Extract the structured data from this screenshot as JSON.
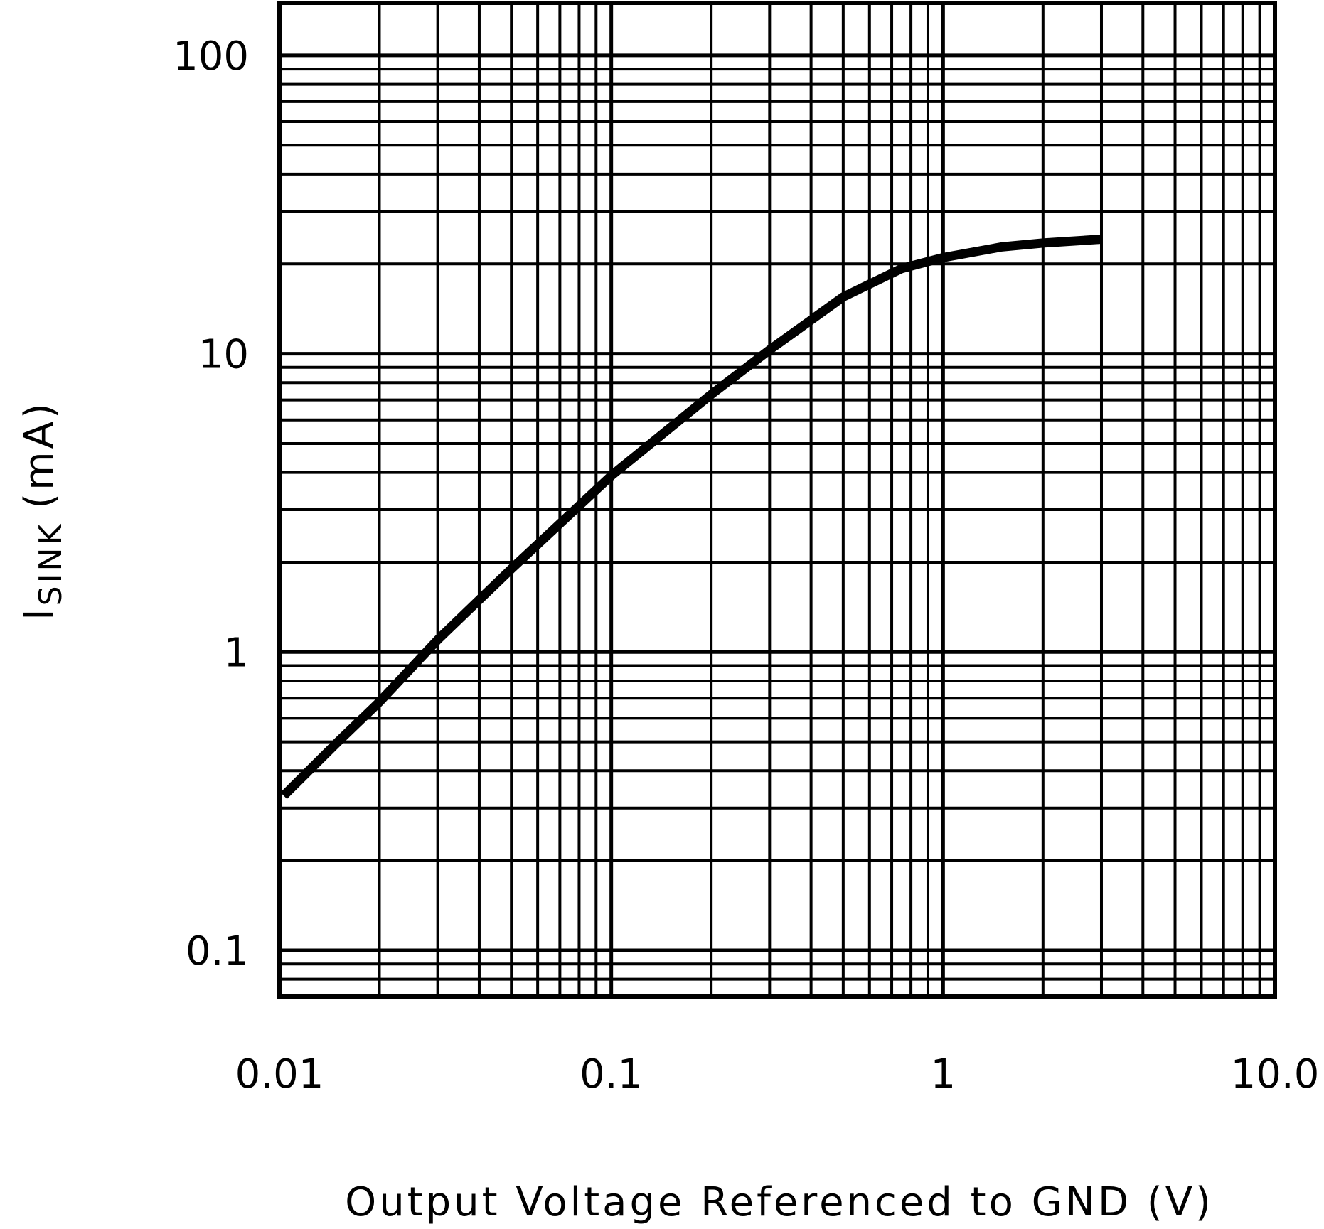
{
  "chart_data": {
    "type": "line",
    "xlabel": "Output Voltage Referenced to GND (V)",
    "ylabel_main": "I",
    "ylabel_sub": "SINK",
    "ylabel_unit": "(mA)",
    "x_scale": "log",
    "y_scale": "log",
    "xlim": [
      0.01,
      10.0
    ],
    "ylim": [
      0.07,
      150
    ],
    "x_ticks": [
      {
        "value": 0.01,
        "label": "0.01"
      },
      {
        "value": 0.1,
        "label": "0.1"
      },
      {
        "value": 1,
        "label": "1"
      },
      {
        "value": 10,
        "label": "10.0"
      }
    ],
    "y_ticks": [
      {
        "value": 0.1,
        "label": "0.1"
      },
      {
        "value": 1,
        "label": "1"
      },
      {
        "value": 10,
        "label": "10"
      },
      {
        "value": 100,
        "label": "100"
      }
    ],
    "grid": true,
    "series": [
      {
        "color": "#000000",
        "x": [
          0.0103,
          0.015,
          0.02,
          0.03,
          0.05,
          0.1,
          0.2,
          0.3,
          0.5,
          0.75,
          1.0,
          1.5,
          2.0,
          3.0
        ],
        "y": [
          0.33,
          0.5,
          0.68,
          1.1,
          1.9,
          3.9,
          7.3,
          10.3,
          15.5,
          19.3,
          21.0,
          22.8,
          23.5,
          24.2
        ]
      }
    ]
  }
}
